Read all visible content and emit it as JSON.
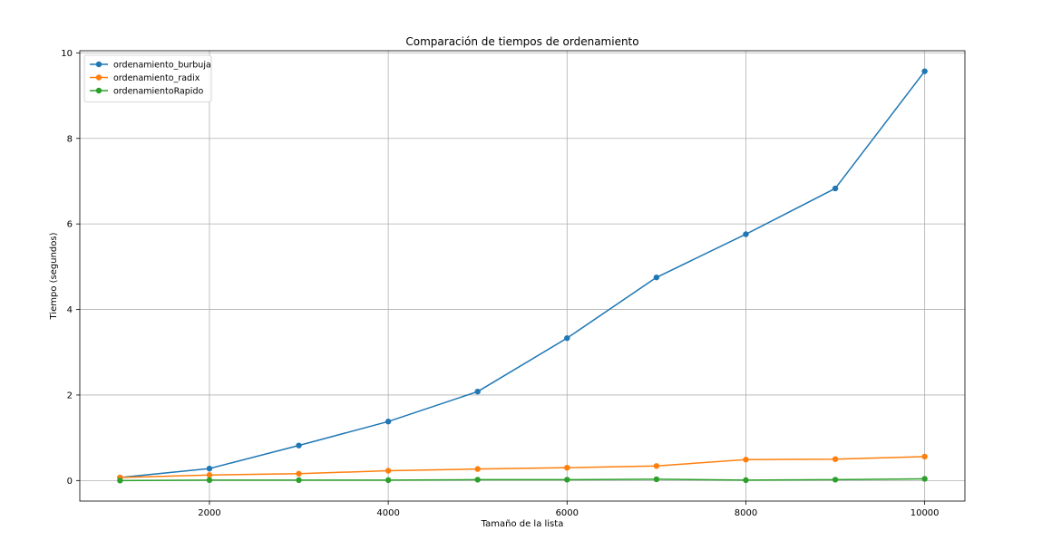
{
  "chart_data": {
    "type": "line",
    "title": "Comparación de tiempos de ordenamiento",
    "xlabel": "Tamaño de la lista",
    "ylabel": "Tiempo (segundos)",
    "xlim": [
      550,
      10450
    ],
    "ylim": [
      -0.48,
      10.05
    ],
    "xticks": [
      2000,
      4000,
      6000,
      8000,
      10000
    ],
    "yticks": [
      0,
      2,
      4,
      6,
      8,
      10
    ],
    "grid": true,
    "legend_position": "top-left",
    "x": [
      1000,
      2000,
      3000,
      4000,
      5000,
      6000,
      7000,
      8000,
      9000,
      10000
    ],
    "series": [
      {
        "name": "ordenamiento_burbuja",
        "color": "#1f77b4",
        "values": [
          0.07,
          0.28,
          0.82,
          1.38,
          2.08,
          3.33,
          4.75,
          5.76,
          6.83,
          9.57
        ]
      },
      {
        "name": "ordenamiento_radix",
        "color": "#ff7f0e",
        "values": [
          0.07,
          0.13,
          0.16,
          0.23,
          0.27,
          0.3,
          0.34,
          0.49,
          0.5,
          0.56
        ]
      },
      {
        "name": "ordenamientoRapido",
        "color": "#2ca02c",
        "values": [
          0.0,
          0.01,
          0.01,
          0.01,
          0.02,
          0.02,
          0.03,
          0.01,
          0.02,
          0.04
        ]
      }
    ]
  }
}
